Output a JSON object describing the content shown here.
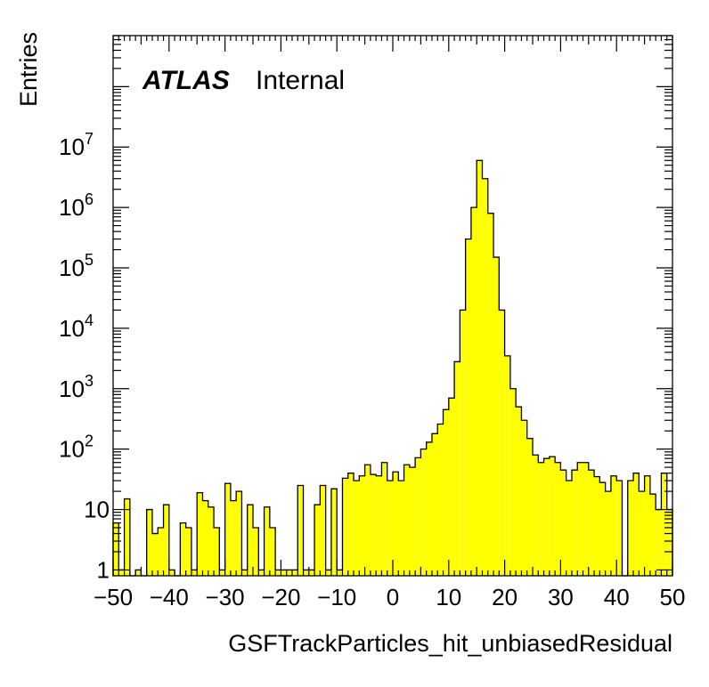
{
  "chart_data": {
    "type": "histogram",
    "title": "",
    "xlabel": "GSFTrackParticles_hit_unbiasedResidual",
    "ylabel": "Entries",
    "xlim": [
      -50,
      50
    ],
    "ylim": [
      0.8,
      700000000
    ],
    "yscale": "log",
    "grid": false,
    "fill_color": "#ffff00",
    "line_color": "#000000",
    "x_tick_labels": [
      "−50",
      "−40",
      "−30",
      "−20",
      "−10",
      "0",
      "10",
      "20",
      "30",
      "40",
      "50"
    ],
    "y_tick_labels": [
      "1",
      "10",
      "10^2",
      "10^3",
      "10^4",
      "10^5",
      "10^6",
      "10^7"
    ],
    "label": {
      "atlas": "ATLAS",
      "status": "Internal"
    },
    "bins": {
      "x_low": [
        -50,
        -49,
        -48,
        -47,
        -46,
        -45,
        -44,
        -43,
        -42,
        -41,
        -40,
        -39,
        -38,
        -37,
        -36,
        -35,
        -34,
        -33,
        -32,
        -31,
        -30,
        -29,
        -28,
        -27,
        -26,
        -25,
        -24,
        -23,
        -22,
        -21,
        -20,
        -19,
        -18,
        -17,
        -16,
        -15,
        -14,
        -13,
        -12,
        -11,
        -10,
        -9,
        -8,
        -7,
        -6,
        -5,
        -4,
        -3,
        -2,
        -1,
        0,
        1,
        2,
        3,
        4,
        5,
        6,
        7,
        8,
        9,
        10,
        11,
        12,
        13,
        14,
        15,
        16,
        17,
        18,
        19,
        20,
        21,
        22,
        23,
        24,
        25,
        26,
        27,
        28,
        29,
        30,
        31,
        32,
        33,
        34,
        35,
        36,
        37,
        38,
        39,
        40,
        41,
        42,
        43,
        44,
        45,
        46,
        47,
        48,
        49
      ],
      "bin_width": 1,
      "values": [
        6,
        1,
        15,
        0,
        1,
        0,
        10,
        4,
        5,
        12,
        1,
        0,
        6,
        5,
        1,
        19,
        14,
        11,
        5,
        1,
        27,
        14,
        20,
        1,
        12,
        5,
        1,
        11,
        5,
        1,
        1,
        1,
        1,
        25,
        1,
        1,
        12,
        25,
        1,
        22,
        1,
        33,
        40,
        30,
        36,
        55,
        38,
        36,
        60,
        30,
        42,
        30,
        55,
        50,
        72,
        100,
        130,
        180,
        260,
        450,
        700,
        2800,
        20000,
        300000,
        1000000,
        6000000,
        3000000,
        800000,
        150000,
        20000,
        3500,
        1000,
        500,
        300,
        150,
        80,
        60,
        70,
        75,
        60,
        45,
        30,
        45,
        60,
        60,
        45,
        35,
        28,
        20,
        36,
        30,
        0,
        30,
        40,
        20,
        36,
        18,
        10,
        40,
        10
      ]
    }
  }
}
